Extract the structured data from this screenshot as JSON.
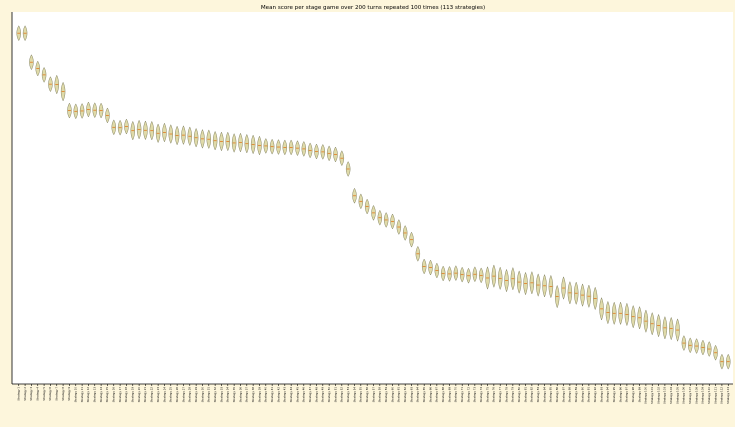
{
  "chart_data": {
    "type": "violin",
    "title": "Mean score per stage game over 200 turns repeated 100 times (113 strategies)",
    "xlabel": "",
    "ylabel": "",
    "n_strategies": 113,
    "categories": [
      "Strategy 1",
      "Strategy 2",
      "Strategy 3",
      "Strategy 4",
      "Strategy 5",
      "Strategy 6",
      "Strategy 7",
      "Strategy 8",
      "Strategy 9",
      "Strategy 10",
      "Strategy 11",
      "Strategy 12",
      "Strategy 13",
      "Strategy 14",
      "Strategy 15",
      "Strategy 16",
      "Strategy 17",
      "Strategy 18",
      "Strategy 19",
      "Strategy 20",
      "Strategy 21",
      "Strategy 22",
      "Strategy 23",
      "Strategy 24",
      "Strategy 25",
      "Strategy 26",
      "Strategy 27",
      "Strategy 28",
      "Strategy 29",
      "Strategy 30",
      "Strategy 31",
      "Strategy 32",
      "Strategy 33",
      "Strategy 34",
      "Strategy 35",
      "Strategy 36",
      "Strategy 37",
      "Strategy 38",
      "Strategy 39",
      "Strategy 40",
      "Strategy 41",
      "Strategy 42",
      "Strategy 43",
      "Strategy 44",
      "Strategy 45",
      "Strategy 46",
      "Strategy 47",
      "Strategy 48",
      "Strategy 49",
      "Strategy 50",
      "Strategy 51",
      "Strategy 52",
      "Strategy 53",
      "Strategy 54",
      "Strategy 55",
      "Strategy 56",
      "Strategy 57",
      "Strategy 58",
      "Strategy 59",
      "Strategy 60",
      "Strategy 61",
      "Strategy 62",
      "Strategy 63",
      "Strategy 64",
      "Strategy 65",
      "Strategy 66",
      "Strategy 67",
      "Strategy 68",
      "Strategy 69",
      "Strategy 70",
      "Strategy 71",
      "Strategy 72",
      "Strategy 73",
      "Strategy 74",
      "Strategy 75",
      "Strategy 76",
      "Strategy 77",
      "Strategy 78",
      "Strategy 79",
      "Strategy 80",
      "Strategy 81",
      "Strategy 82",
      "Strategy 83",
      "Strategy 84",
      "Strategy 85",
      "Strategy 86",
      "Strategy 87",
      "Strategy 88",
      "Strategy 89",
      "Strategy 90",
      "Strategy 91",
      "Strategy 92",
      "Strategy 93",
      "Strategy 94",
      "Strategy 95",
      "Strategy 96",
      "Strategy 97",
      "Strategy 98",
      "Strategy 99",
      "Strategy 100",
      "Strategy 101",
      "Strategy 102",
      "Strategy 103",
      "Strategy 104",
      "Strategy 105",
      "Strategy 106",
      "Strategy 107",
      "Strategy 108",
      "Strategy 109",
      "Strategy 110",
      "Strategy 111",
      "Strategy 112",
      "Strategy 113"
    ],
    "y_axis_units": "normalized (0 = bottom of axis, 1 = top of axis); tick labels not legible",
    "ylim": [
      0,
      1
    ],
    "medians": [
      0.943,
      0.943,
      0.865,
      0.848,
      0.831,
      0.806,
      0.805,
      0.786,
      0.735,
      0.733,
      0.734,
      0.738,
      0.736,
      0.735,
      0.722,
      0.69,
      0.689,
      0.692,
      0.681,
      0.684,
      0.682,
      0.681,
      0.674,
      0.676,
      0.672,
      0.668,
      0.669,
      0.666,
      0.662,
      0.659,
      0.658,
      0.654,
      0.652,
      0.652,
      0.648,
      0.649,
      0.646,
      0.644,
      0.641,
      0.64,
      0.638,
      0.637,
      0.636,
      0.636,
      0.634,
      0.632,
      0.628,
      0.625,
      0.624,
      0.62,
      0.617,
      0.607,
      0.578,
      0.506,
      0.491,
      0.477,
      0.46,
      0.447,
      0.441,
      0.437,
      0.422,
      0.406,
      0.388,
      0.35,
      0.316,
      0.313,
      0.305,
      0.297,
      0.296,
      0.298,
      0.294,
      0.291,
      0.295,
      0.292,
      0.285,
      0.29,
      0.284,
      0.278,
      0.283,
      0.274,
      0.27,
      0.272,
      0.266,
      0.264,
      0.262,
      0.235,
      0.258,
      0.245,
      0.244,
      0.239,
      0.236,
      0.23,
      0.202,
      0.192,
      0.19,
      0.19,
      0.187,
      0.181,
      0.178,
      0.169,
      0.162,
      0.157,
      0.151,
      0.149,
      0.145,
      0.11,
      0.104,
      0.102,
      0.098,
      0.094,
      0.084,
      0.06,
      0.06
    ],
    "spread_low": [
      0.02,
      0.02,
      0.02,
      0.02,
      0.02,
      0.02,
      0.025,
      0.025,
      0.02,
      0.02,
      0.02,
      0.02,
      0.02,
      0.02,
      0.02,
      0.02,
      0.02,
      0.02,
      0.025,
      0.025,
      0.025,
      0.025,
      0.025,
      0.025,
      0.025,
      0.025,
      0.025,
      0.025,
      0.025,
      0.025,
      0.025,
      0.025,
      0.025,
      0.025,
      0.025,
      0.025,
      0.025,
      0.025,
      0.025,
      0.02,
      0.02,
      0.02,
      0.02,
      0.02,
      0.02,
      0.02,
      0.02,
      0.02,
      0.02,
      0.02,
      0.02,
      0.02,
      0.02,
      0.02,
      0.02,
      0.02,
      0.02,
      0.02,
      0.02,
      0.02,
      0.02,
      0.02,
      0.02,
      0.02,
      0.02,
      0.02,
      0.02,
      0.02,
      0.02,
      0.02,
      0.02,
      0.02,
      0.02,
      0.02,
      0.03,
      0.03,
      0.03,
      0.03,
      0.03,
      0.03,
      0.03,
      0.03,
      0.03,
      0.03,
      0.03,
      0.03,
      0.03,
      0.03,
      0.03,
      0.03,
      0.03,
      0.03,
      0.03,
      0.03,
      0.03,
      0.03,
      0.03,
      0.03,
      0.03,
      0.03,
      0.03,
      0.03,
      0.03,
      0.03,
      0.03,
      0.02,
      0.02,
      0.02,
      0.02,
      0.02,
      0.02,
      0.02,
      0.02
    ],
    "spread_high": [
      0.02,
      0.02,
      0.02,
      0.02,
      0.02,
      0.02,
      0.025,
      0.025,
      0.02,
      0.02,
      0.02,
      0.02,
      0.02,
      0.02,
      0.02,
      0.02,
      0.02,
      0.02,
      0.025,
      0.025,
      0.025,
      0.025,
      0.025,
      0.025,
      0.025,
      0.025,
      0.025,
      0.025,
      0.025,
      0.025,
      0.025,
      0.025,
      0.025,
      0.025,
      0.025,
      0.025,
      0.025,
      0.025,
      0.025,
      0.02,
      0.02,
      0.02,
      0.02,
      0.02,
      0.02,
      0.02,
      0.02,
      0.02,
      0.02,
      0.02,
      0.02,
      0.02,
      0.02,
      0.02,
      0.02,
      0.02,
      0.02,
      0.02,
      0.02,
      0.02,
      0.02,
      0.02,
      0.02,
      0.02,
      0.02,
      0.02,
      0.02,
      0.02,
      0.02,
      0.02,
      0.02,
      0.02,
      0.02,
      0.02,
      0.03,
      0.03,
      0.03,
      0.03,
      0.03,
      0.03,
      0.03,
      0.03,
      0.03,
      0.03,
      0.03,
      0.03,
      0.03,
      0.03,
      0.03,
      0.03,
      0.03,
      0.03,
      0.03,
      0.03,
      0.03,
      0.03,
      0.03,
      0.03,
      0.03,
      0.03,
      0.03,
      0.03,
      0.03,
      0.03,
      0.03,
      0.02,
      0.02,
      0.02,
      0.02,
      0.02,
      0.02,
      0.02,
      0.02
    ],
    "grid": false,
    "legend": "none"
  },
  "colors": {
    "violin_fill": "#d9d49a",
    "violin_edge": "#7a7a5a",
    "median": "#e07a20",
    "page_background": "#fdf6dc"
  }
}
